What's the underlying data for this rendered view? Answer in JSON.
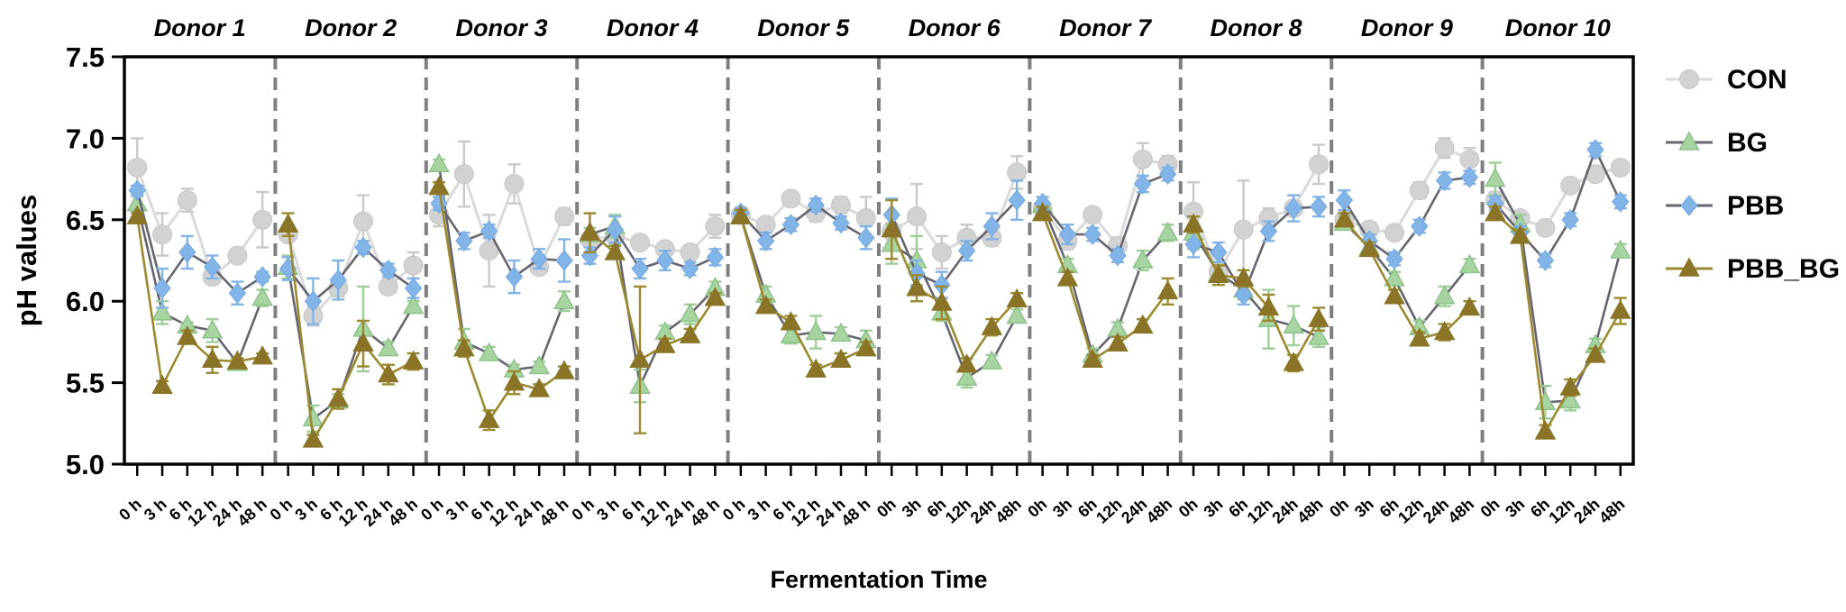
{
  "chart_data": {
    "type": "line",
    "title": "",
    "ylabel": "pH values",
    "xlabel": "Fermentation Time",
    "ylim": [
      5.0,
      7.5
    ],
    "y_ticks": [
      5.0,
      5.5,
      6.0,
      6.5,
      7.0,
      7.5
    ],
    "grid": false,
    "legend_position": "right-outside",
    "series_meta": [
      {
        "key": "CON",
        "label": "CON",
        "marker": "circle",
        "marker_color": "#d2d2d2",
        "marker_edge": "#c7c7c7",
        "line_color": "#dadada",
        "err_color": "#c9c9c9"
      },
      {
        "key": "BG",
        "label": "BG",
        "marker": "triangle",
        "marker_color": "#a8d4a2",
        "marker_edge": "#8cc289",
        "line_color": "#65656f",
        "err_color": "#9fce99"
      },
      {
        "key": "PBB",
        "label": "PBB",
        "marker": "diamond",
        "marker_color": "#82b4e8",
        "marker_edge": "#74a8e0",
        "line_color": "#65656f",
        "err_color": "#82b4e8"
      },
      {
        "key": "PBB_BG",
        "label": "PBB_BG",
        "marker": "triangle",
        "marker_color": "#8a7428",
        "marker_edge": "#8a7428",
        "line_color": "#9c8a33",
        "err_color": "#9c8a33"
      }
    ],
    "panels": [
      {
        "title": "Donor 1",
        "x_labels": [
          "0 h",
          "3 h",
          "6 h",
          "12 h",
          "24 h",
          "48 h"
        ],
        "data": {
          "CON": {
            "values": [
              6.82,
              6.41,
              6.62,
              6.15,
              6.28,
              6.5
            ],
            "errors": [
              0.18,
              0.13,
              0.07,
              0.04,
              0.04,
              0.17
            ]
          },
          "BG": {
            "values": [
              6.6,
              5.93,
              5.85,
              5.82,
              5.62,
              6.02
            ],
            "errors": [
              0.05,
              0.07,
              0.02,
              0.07,
              0.03,
              0.05
            ]
          },
          "PBB": {
            "values": [
              6.68,
              6.08,
              6.3,
              6.21,
              6.05,
              6.15
            ],
            "errors": [
              0.03,
              0.12,
              0.1,
              0.07,
              0.07,
              0.03
            ]
          },
          "PBB_BG": {
            "values": [
              6.52,
              5.48,
              5.78,
              5.64,
              5.63,
              5.66
            ],
            "errors": [
              0.02,
              0.03,
              0.04,
              0.08,
              0.02,
              0.02
            ]
          }
        }
      },
      {
        "title": "Donor 2",
        "x_labels": [
          "0 h",
          "3 h",
          "6 h",
          "12 h",
          "24 h",
          "48 h"
        ],
        "data": {
          "CON": {
            "values": [
              6.41,
              5.91,
              6.08,
              6.49,
              6.09,
              6.22
            ],
            "errors": [
              0.02,
              0.06,
              0.05,
              0.16,
              0.03,
              0.08
            ]
          },
          "BG": {
            "values": [
              6.21,
              5.28,
              5.39,
              5.83,
              5.71,
              5.97
            ],
            "errors": [
              0.07,
              0.08,
              0.04,
              0.26,
              0.04,
              0.03
            ]
          },
          "PBB": {
            "values": [
              6.2,
              6.0,
              6.13,
              6.33,
              6.19,
              6.08
            ],
            "errors": [
              0.07,
              0.14,
              0.12,
              0.04,
              0.04,
              0.06
            ]
          },
          "PBB_BG": {
            "values": [
              6.47,
              5.15,
              5.4,
              5.74,
              5.55,
              5.63
            ],
            "errors": [
              0.07,
              0.03,
              0.06,
              0.14,
              0.06,
              0.05
            ]
          }
        }
      },
      {
        "title": "Donor 3",
        "x_labels": [
          "0 h",
          "3 h",
          "6 h",
          "12 h",
          "24 h",
          "48 h"
        ],
        "data": {
          "CON": {
            "values": [
              6.53,
              6.78,
              6.31,
              6.72,
              6.21,
              6.52
            ],
            "errors": [
              0.07,
              0.2,
              0.22,
              0.12,
              0.03,
              0.05
            ]
          },
          "BG": {
            "values": [
              6.84,
              5.75,
              5.68,
              5.58,
              5.6,
              6.0
            ],
            "errors": [
              0.03,
              0.08,
              0.04,
              0.03,
              0.03,
              0.06
            ]
          },
          "PBB": {
            "values": [
              6.6,
              6.37,
              6.43,
              6.15,
              6.26,
              6.25
            ],
            "errors": [
              0.04,
              0.05,
              0.04,
              0.1,
              0.06,
              0.13
            ]
          },
          "PBB_BG": {
            "values": [
              6.7,
              5.71,
              5.27,
              5.5,
              5.46,
              5.57
            ],
            "errors": [
              0.03,
              0.05,
              0.06,
              0.07,
              0.03,
              0.03
            ]
          }
        }
      },
      {
        "title": "Donor 4",
        "x_labels": [
          "0 h",
          "3 h",
          "6 h",
          "12 h",
          "24 h",
          "48 h"
        ],
        "data": {
          "CON": {
            "values": [
              6.38,
              6.4,
              6.36,
              6.32,
              6.3,
              6.46
            ],
            "errors": [
              0.04,
              0.05,
              0.03,
              0.04,
              0.04,
              0.07
            ]
          },
          "BG": {
            "values": [
              6.41,
              6.46,
              5.48,
              5.81,
              5.92,
              6.08
            ],
            "errors": [
              0.04,
              0.07,
              0.1,
              0.04,
              0.06,
              0.04
            ]
          },
          "PBB": {
            "values": [
              6.28,
              6.44,
              6.2,
              6.25,
              6.2,
              6.27
            ],
            "errors": [
              0.05,
              0.08,
              0.06,
              0.06,
              0.04,
              0.05
            ]
          },
          "PBB_BG": {
            "values": [
              6.42,
              6.3,
              5.64,
              5.73,
              5.79,
              6.02
            ],
            "errors": [
              0.12,
              0.04,
              0.45,
              0.04,
              0.04,
              0.03
            ]
          }
        }
      },
      {
        "title": "Donor 5",
        "x_labels": [
          "0 h",
          "3 h",
          "6 h",
          "12 h",
          "24 h",
          "48 h"
        ],
        "data": {
          "CON": {
            "values": [
              6.53,
              6.47,
              6.63,
              6.54,
              6.59,
              6.51
            ],
            "errors": [
              0.04,
              0.04,
              0.04,
              0.05,
              0.05,
              0.13
            ]
          },
          "BG": {
            "values": [
              6.52,
              6.04,
              5.79,
              5.81,
              5.8,
              5.76
            ],
            "errors": [
              0.03,
              0.05,
              0.05,
              0.1,
              0.04,
              0.06
            ]
          },
          "PBB": {
            "values": [
              6.54,
              6.37,
              6.47,
              6.59,
              6.48,
              6.39
            ],
            "errors": [
              0.03,
              0.05,
              0.04,
              0.04,
              0.04,
              0.07
            ]
          },
          "PBB_BG": {
            "values": [
              6.52,
              5.97,
              5.87,
              5.58,
              5.64,
              5.71
            ],
            "errors": [
              0.04,
              0.04,
              0.04,
              0.03,
              0.04,
              0.04
            ]
          }
        }
      },
      {
        "title": "Donor 6",
        "x_labels": [
          "0h",
          "3h",
          "6h",
          "12h",
          "24h",
          "48h"
        ],
        "data": {
          "CON": {
            "values": [
              6.43,
              6.52,
              6.3,
              6.39,
              6.39,
              6.79
            ],
            "errors": [
              0.05,
              0.2,
              0.1,
              0.08,
              0.05,
              0.1
            ]
          },
          "BG": {
            "values": [
              6.35,
              6.25,
              5.93,
              5.53,
              5.63,
              5.91
            ],
            "errors": [
              0.12,
              0.15,
              0.05,
              0.06,
              0.04,
              0.04
            ]
          },
          "PBB": {
            "values": [
              6.53,
              6.17,
              6.1,
              6.31,
              6.46,
              6.62
            ],
            "errors": [
              0.1,
              0.08,
              0.08,
              0.06,
              0.08,
              0.12
            ]
          },
          "PBB_BG": {
            "values": [
              6.44,
              6.08,
              5.99,
              5.61,
              5.84,
              6.01
            ],
            "errors": [
              0.18,
              0.08,
              0.1,
              0.04,
              0.05,
              0.04
            ]
          }
        }
      },
      {
        "title": "Donor 7",
        "x_labels": [
          "0h",
          "3h",
          "6h",
          "12h",
          "24h",
          "48h"
        ],
        "data": {
          "CON": {
            "values": [
              6.57,
              6.37,
              6.53,
              6.34,
              6.87,
              6.84
            ],
            "errors": [
              0.04,
              0.05,
              0.04,
              0.05,
              0.1,
              0.05
            ]
          },
          "BG": {
            "values": [
              6.59,
              6.22,
              5.67,
              5.83,
              6.25,
              6.42
            ],
            "errors": [
              0.05,
              0.04,
              0.04,
              0.04,
              0.06,
              0.05
            ]
          },
          "PBB": {
            "values": [
              6.6,
              6.41,
              6.41,
              6.28,
              6.72,
              6.78
            ],
            "errors": [
              0.04,
              0.06,
              0.04,
              0.04,
              0.05,
              0.04
            ]
          },
          "PBB_BG": {
            "values": [
              6.54,
              6.14,
              5.64,
              5.74,
              5.85,
              6.06
            ],
            "errors": [
              0.04,
              0.04,
              0.03,
              0.04,
              0.04,
              0.08
            ]
          }
        }
      },
      {
        "title": "Donor 8",
        "x_labels": [
          "0h",
          "3h",
          "6h",
          "12h",
          "24h",
          "48h"
        ],
        "data": {
          "CON": {
            "values": [
              6.55,
              6.18,
              6.44,
              6.51,
              6.57,
              6.84
            ],
            "errors": [
              0.18,
              0.06,
              0.3,
              0.06,
              0.08,
              0.12
            ]
          },
          "BG": {
            "values": [
              6.42,
              6.17,
              6.07,
              5.89,
              5.85,
              5.78
            ],
            "errors": [
              0.1,
              0.05,
              0.06,
              0.18,
              0.12,
              0.06
            ]
          },
          "PBB": {
            "values": [
              6.35,
              6.3,
              6.04,
              6.43,
              6.57,
              6.58
            ],
            "errors": [
              0.08,
              0.06,
              0.06,
              0.06,
              0.08,
              0.06
            ]
          },
          "PBB_BG": {
            "values": [
              6.47,
              6.16,
              6.14,
              5.96,
              5.62,
              5.89
            ],
            "errors": [
              0.05,
              0.06,
              0.05,
              0.08,
              0.05,
              0.07
            ]
          }
        }
      },
      {
        "title": "Donor 9",
        "x_labels": [
          "0h",
          "3h",
          "6h",
          "12h",
          "24h",
          "48h"
        ],
        "data": {
          "CON": {
            "values": [
              6.5,
              6.44,
              6.42,
              6.68,
              6.94,
              6.87
            ],
            "errors": [
              0.05,
              0.04,
              0.04,
              0.05,
              0.06,
              0.07
            ]
          },
          "BG": {
            "values": [
              6.48,
              6.33,
              6.14,
              5.84,
              6.03,
              6.22
            ],
            "errors": [
              0.04,
              0.04,
              0.04,
              0.04,
              0.06,
              0.04
            ]
          },
          "PBB": {
            "values": [
              6.62,
              6.37,
              6.26,
              6.46,
              6.74,
              6.76
            ],
            "errors": [
              0.06,
              0.04,
              0.04,
              0.04,
              0.05,
              0.04
            ]
          },
          "PBB_BG": {
            "values": [
              6.5,
              6.32,
              6.03,
              5.77,
              5.81,
              5.96
            ],
            "errors": [
              0.04,
              0.04,
              0.04,
              0.04,
              0.05,
              0.04
            ]
          }
        }
      },
      {
        "title": "Donor 10",
        "x_labels": [
          "0h",
          "3h",
          "6h",
          "12h",
          "24h",
          "48h"
        ],
        "data": {
          "CON": {
            "values": [
              6.62,
              6.51,
              6.45,
              6.71,
              6.78,
              6.82
            ],
            "errors": [
              0.05,
              0.04,
              0.04,
              0.04,
              0.04,
              0.04
            ]
          },
          "BG": {
            "values": [
              6.75,
              6.47,
              5.38,
              5.39,
              5.73,
              6.31
            ],
            "errors": [
              0.1,
              0.06,
              0.1,
              0.06,
              0.04,
              0.04
            ]
          },
          "PBB": {
            "values": [
              6.6,
              6.42,
              6.25,
              6.5,
              6.93,
              6.61
            ],
            "errors": [
              0.04,
              0.04,
              0.04,
              0.04,
              0.04,
              0.04
            ]
          },
          "PBB_BG": {
            "values": [
              6.54,
              6.4,
              5.2,
              5.47,
              5.67,
              5.94
            ],
            "errors": [
              0.04,
              0.04,
              0.04,
              0.05,
              0.04,
              0.08
            ]
          }
        }
      }
    ]
  },
  "style": {
    "background": "#ffffff",
    "axis_color": "#000000",
    "separator_color": "#7f7f7f",
    "text_color": "#000000"
  }
}
